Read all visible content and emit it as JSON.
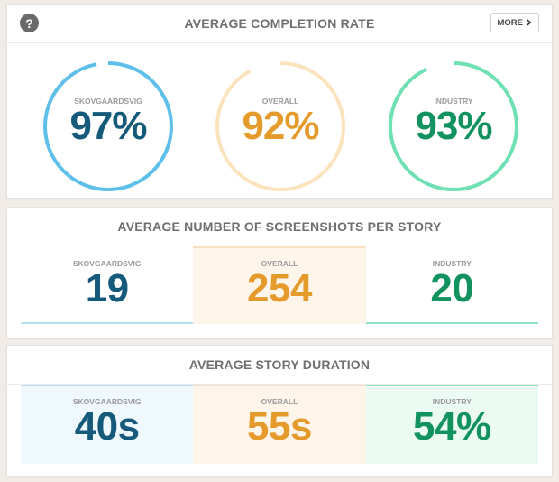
{
  "colors": {
    "skovgaardsvig": "#155a7a",
    "overall": "#e59a2c",
    "industry": "#12925f",
    "skovgaardsvig_ring": "#5ebfe9",
    "overall_ring": "#fbe3bd",
    "industry_ring": "#6fe0b3"
  },
  "completion": {
    "title": "AVERAGE COMPLETION RATE",
    "help_icon": "question-icon",
    "more_label": "MORE",
    "items": [
      {
        "label": "SKOVGAARDSVIG",
        "value": "97%",
        "percent": 97,
        "key": "skovgaardsvig"
      },
      {
        "label": "OVERALL",
        "value": "92%",
        "percent": 92,
        "key": "overall"
      },
      {
        "label": "INDUSTRY",
        "value": "93%",
        "percent": 93,
        "key": "industry"
      }
    ]
  },
  "screenshots": {
    "title": "AVERAGE NUMBER OF SCREENSHOTS PER STORY",
    "items": [
      {
        "label": "SKOVGAARDSVIG",
        "value": "19"
      },
      {
        "label": "OVERALL",
        "value": "254"
      },
      {
        "label": "INDUSTRY",
        "value": "20"
      }
    ]
  },
  "duration": {
    "title": "AVERAGE STORY DURATION",
    "items": [
      {
        "label": "SKOVGAARDSVIG",
        "value": "40s"
      },
      {
        "label": "OVERALL",
        "value": "55s"
      },
      {
        "label": "INDUSTRY",
        "value": "54%"
      }
    ]
  }
}
